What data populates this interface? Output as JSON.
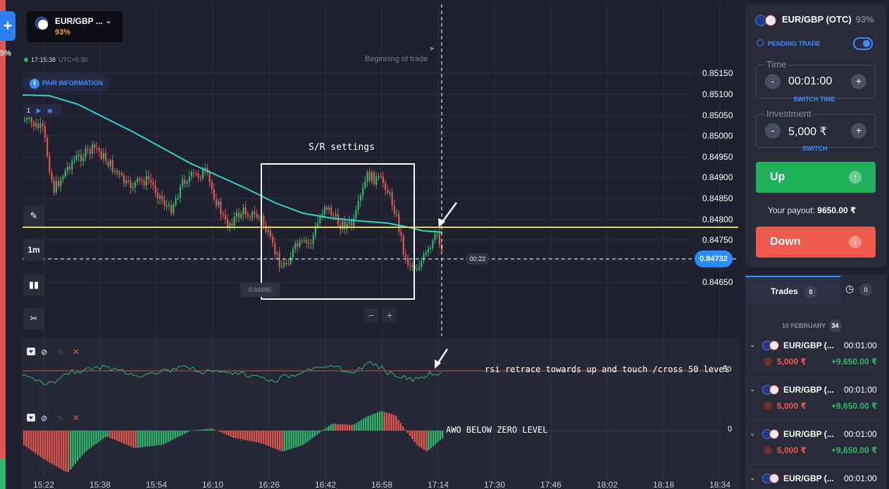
{
  "sidebar": {
    "add_label": "+",
    "payout_partial": "5%"
  },
  "asset_chip": {
    "name": "EUR/GBP ...",
    "payout": "93%"
  },
  "clock": {
    "time": "17:15:38",
    "timezone": "UTC+5:30"
  },
  "pair_info_label": "PAIR INFORMATION",
  "indicator_chip": {
    "count": "1"
  },
  "timeframe": "1m",
  "chart": {
    "begin_label": "Beginning of trade",
    "current_price": "0.84732",
    "timer": "00:22",
    "low_price": "0.84685",
    "price_axis": [
      "0.85150",
      "0.85100",
      "0.85050",
      "0.85000",
      "0.84950",
      "0.84900",
      "0.84850",
      "0.84800",
      "0.84750",
      "0.84650"
    ],
    "time_axis": [
      "15:22",
      "15:38",
      "15:54",
      "16:10",
      "16:26",
      "16:42",
      "16:58",
      "17:14",
      "17:30",
      "17:46",
      "18:02",
      "18:18",
      "18:34"
    ],
    "zoom_out": "−",
    "zoom_in": "+",
    "colors": {
      "up": "#2fb66a",
      "down": "#e0554e",
      "ma": "#2fd6c7",
      "level": "#e8d35a",
      "background": "#1f2130"
    }
  },
  "annotations": {
    "sr_label": "S/R settings",
    "rsi_note": "rsi retrace towards up and touch /cross 50 level",
    "awo_note": "AWO BELOW ZERO LEVEL"
  },
  "rsi": {
    "level_label": "50"
  },
  "awo": {
    "level_label": "0"
  },
  "panel": {
    "asset": "EUR/GBP (OTC)",
    "payout": "93%",
    "pending_label": "PENDING TRADE",
    "time_label": "Time",
    "time_value": "00:01:00",
    "switch_time": "SWITCH TIME",
    "investment_label": "Investment",
    "investment_value": "5,000 ₹",
    "switch": "SWITCH",
    "minus": "-",
    "plus": "+",
    "up_label": "Up",
    "payout_label": "Your payout:",
    "payout_value": "9650.00 ₹",
    "down_label": "Down"
  },
  "trades": {
    "tab_label": "Trades",
    "tab_count": "0",
    "history_count": "0",
    "date_header": "10 FEBRUARY",
    "date_count": "34",
    "items": [
      {
        "asset": "EUR/GBP (...",
        "duration": "00:01:00",
        "amount": "5,000 ₹",
        "result": "+9,650.00 ₹"
      },
      {
        "asset": "EUR/GBP (...",
        "duration": "00:01:00",
        "amount": "5,000 ₹",
        "result": "+9,650.00 ₹"
      },
      {
        "asset": "EUR/GBP (...",
        "duration": "00:01:00",
        "amount": "5,000 ₹",
        "result": "+9,650.00 ₹"
      },
      {
        "asset": "EUR/GBP (...",
        "duration": "00:01:00",
        "amount": "",
        "result": ""
      }
    ]
  }
}
